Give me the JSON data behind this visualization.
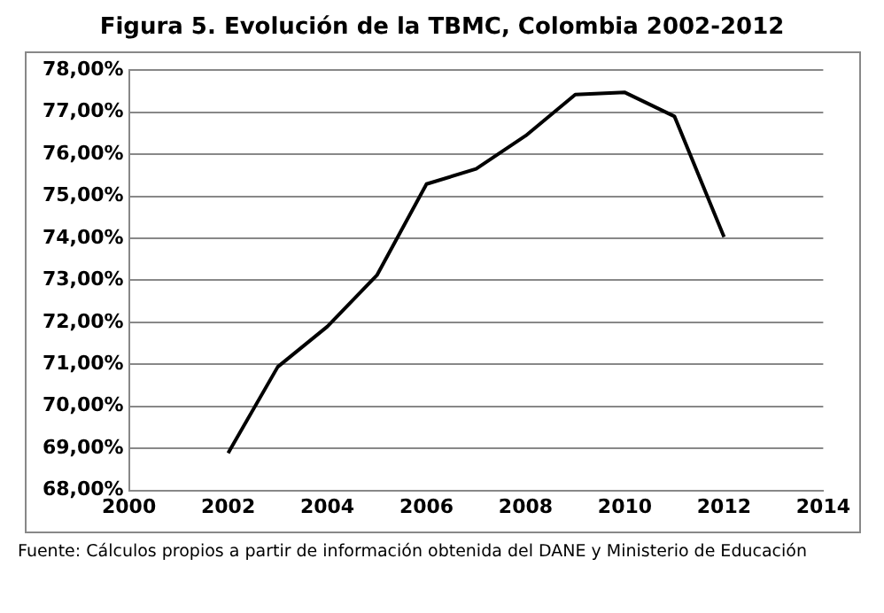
{
  "chart_data": {
    "type": "line",
    "title": "Figura 5. Evolución de la TBMC, Colombia 2002-2012",
    "x": [
      2002,
      2003,
      2004,
      2005,
      2006,
      2007,
      2008,
      2009,
      2010,
      2011,
      2012
    ],
    "series": [
      {
        "color": "#000000",
        "values": [
          68.89,
          70.94,
          71.9,
          73.12,
          75.29,
          75.65,
          76.44,
          77.42,
          77.47,
          76.9,
          74.03
        ]
      }
    ],
    "xlim": [
      2000,
      2014
    ],
    "xticks": [
      2000,
      2002,
      2004,
      2006,
      2008,
      2010,
      2012,
      2014
    ],
    "ylim": [
      68,
      78
    ],
    "yticks": [
      {
        "value": 68,
        "label": "68,00%"
      },
      {
        "value": 69,
        "label": "69,00%"
      },
      {
        "value": 70,
        "label": "70,00%"
      },
      {
        "value": 71,
        "label": "71,00%"
      },
      {
        "value": 72,
        "label": "72,00%"
      },
      {
        "value": 73,
        "label": "73,00%"
      },
      {
        "value": 74,
        "label": "74,00%"
      },
      {
        "value": 75,
        "label": "75,00%"
      },
      {
        "value": 76,
        "label": "76,00%"
      },
      {
        "value": 77,
        "label": "77,00%"
      },
      {
        "value": 78,
        "label": "78,00%"
      }
    ],
    "grid": "y",
    "legend": false,
    "marker": "none",
    "line_style": "solid",
    "annotations": [
      "Fuente: Cálculos propios a partir de información obtenida del DANE y Ministerio de Educación"
    ]
  }
}
